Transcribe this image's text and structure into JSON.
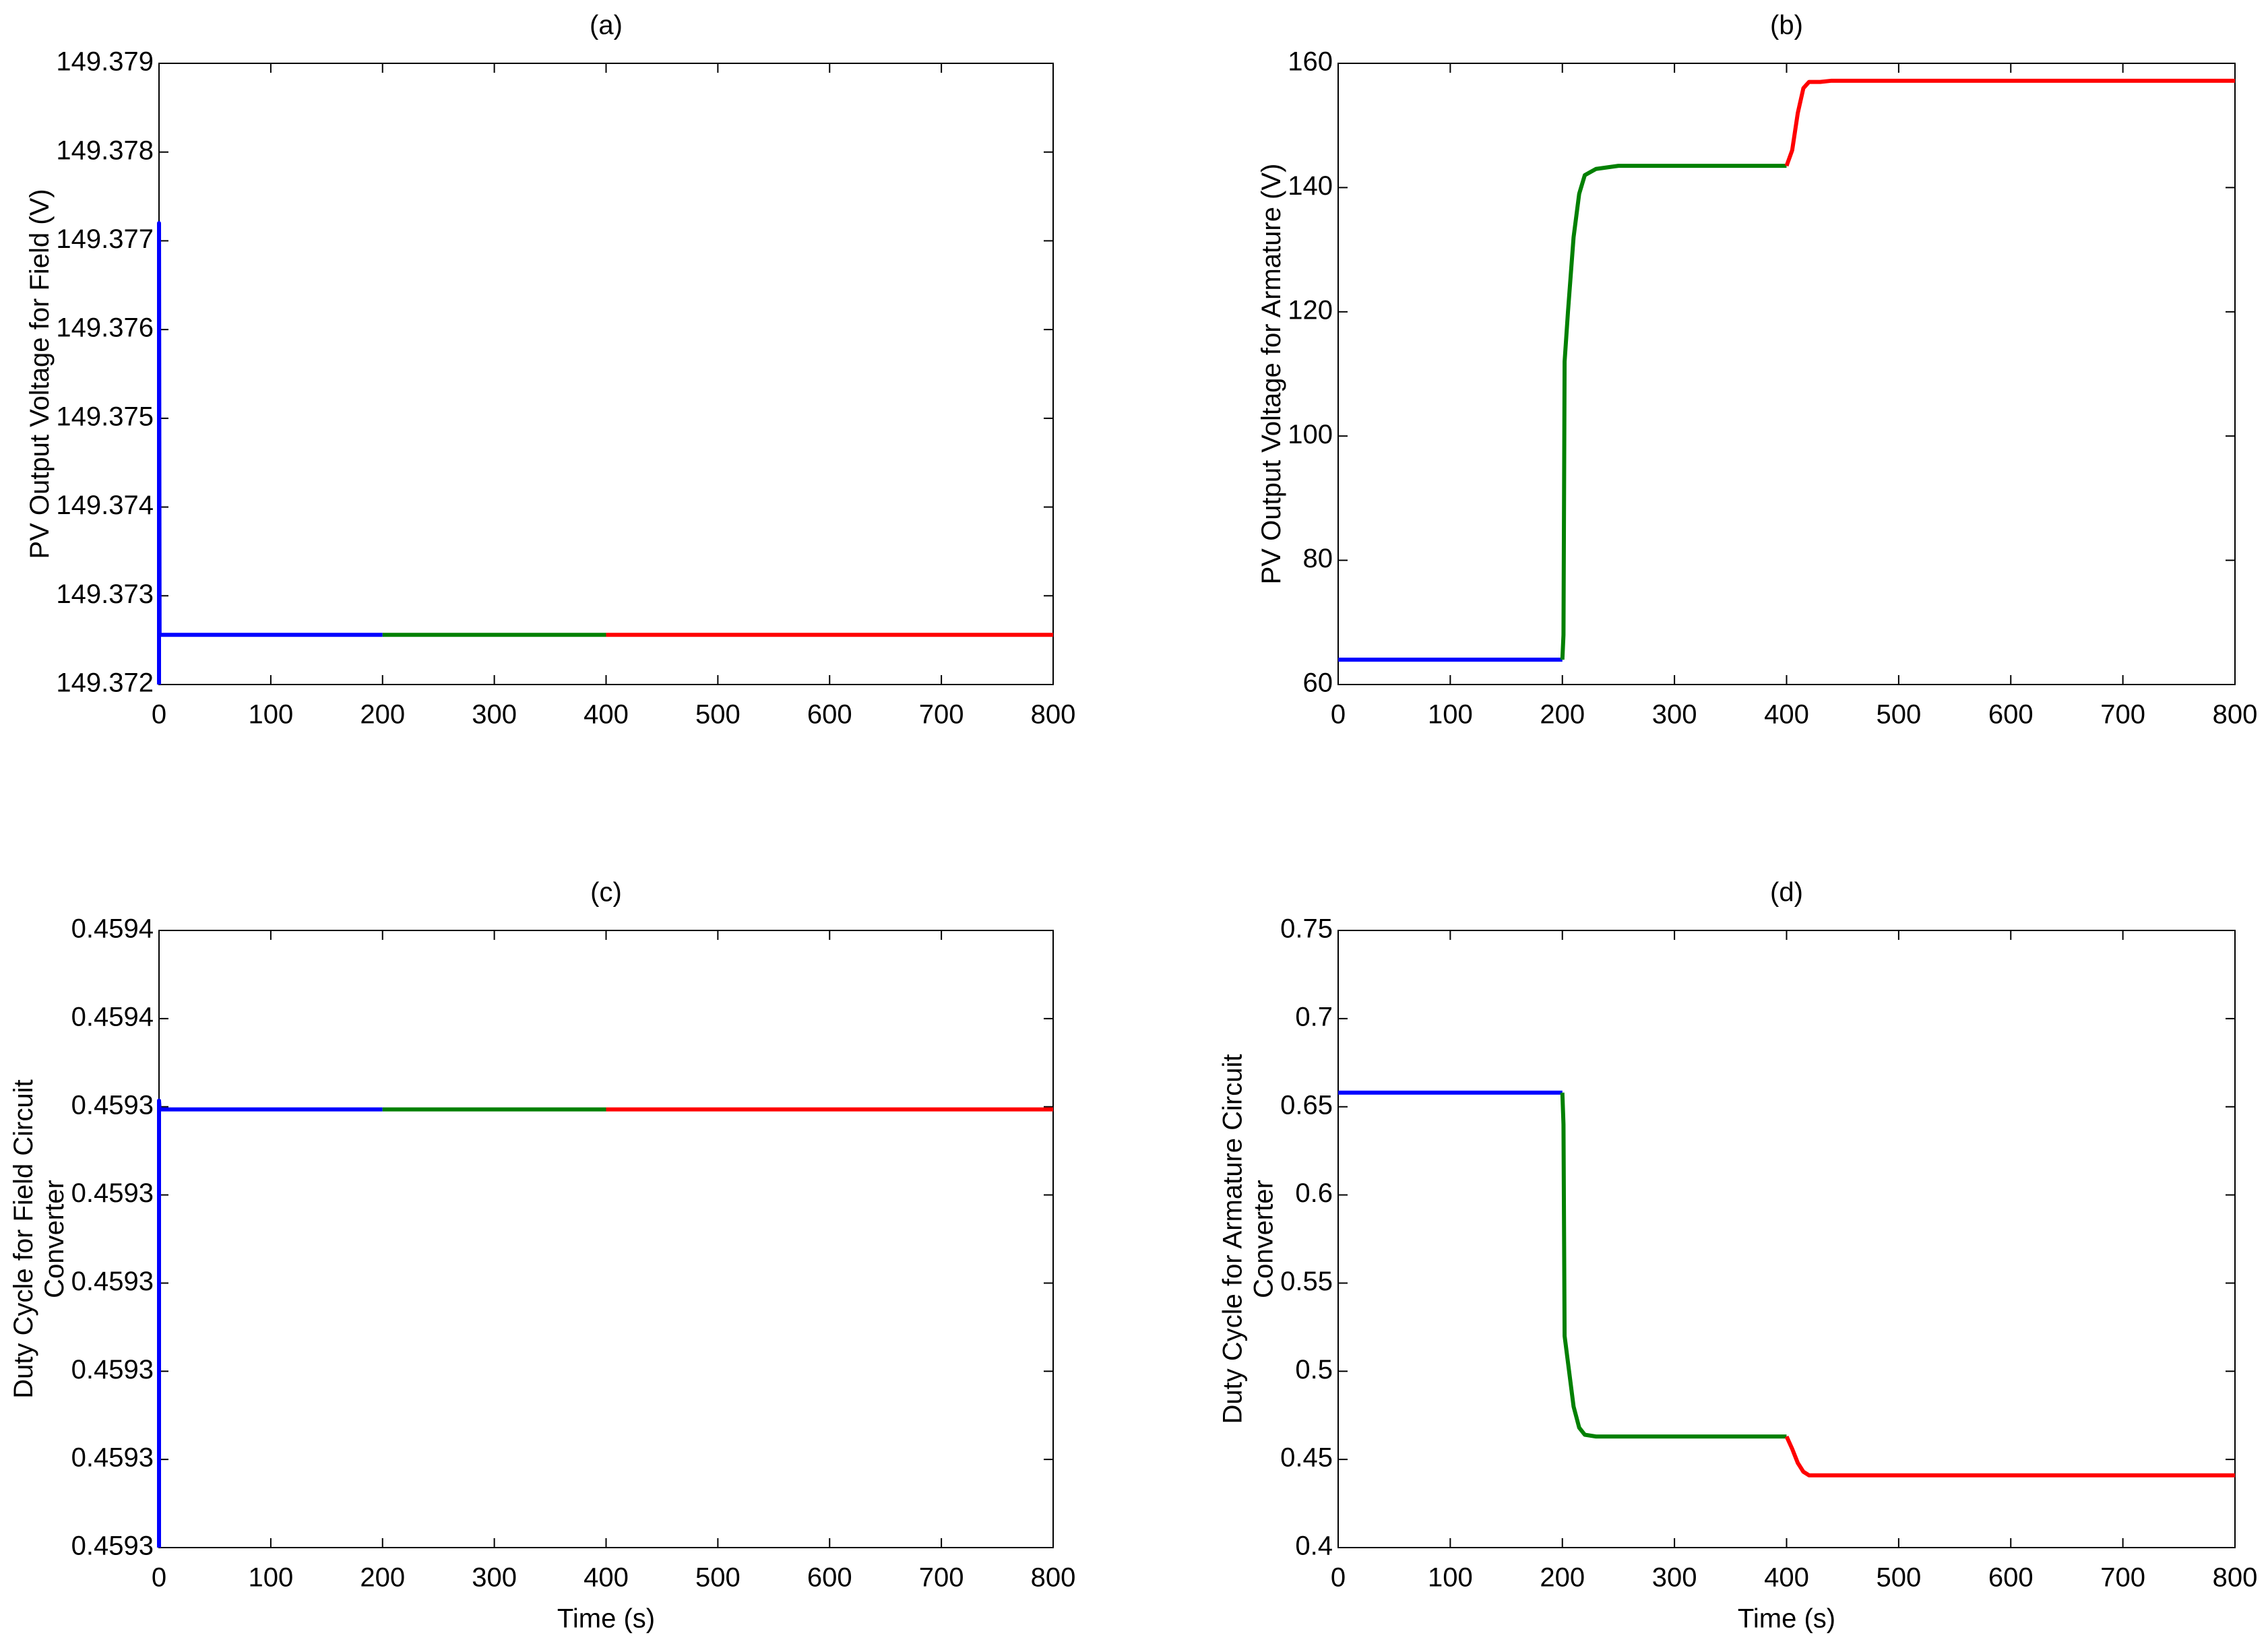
{
  "chart_data": [
    {
      "type": "line",
      "title": "(a)",
      "ylabel": [
        "PV Output Voltage for Field (V)"
      ],
      "xlim": [
        0,
        800
      ],
      "xticks": [
        0,
        100,
        200,
        300,
        400,
        500,
        600,
        700,
        800
      ],
      "ylim": [
        149.372,
        149.379
      ],
      "yticks": [
        149.372,
        149.373,
        149.374,
        149.375,
        149.376,
        149.377,
        149.378,
        149.379
      ],
      "series": [
        {
          "color": "#0000ff",
          "x": [
            0,
            0,
            0.5,
            200
          ],
          "values": [
            149.372,
            149.3772,
            149.37256,
            149.37256
          ]
        },
        {
          "color": "#008000",
          "x": [
            200,
            400
          ],
          "values": [
            149.37256,
            149.37256
          ]
        },
        {
          "color": "#ff0000",
          "x": [
            400,
            800
          ],
          "values": [
            149.37256,
            149.37256
          ]
        }
      ]
    },
    {
      "type": "line",
      "title": "(b)",
      "ylabel": [
        "PV Output Voltage for Armature (V)"
      ],
      "xlim": [
        0,
        800
      ],
      "xticks": [
        0,
        100,
        200,
        300,
        400,
        500,
        600,
        700,
        800
      ],
      "ylim": [
        60,
        160
      ],
      "yticks": [
        60,
        80,
        100,
        120,
        140,
        160
      ],
      "series": [
        {
          "color": "#0000ff",
          "x": [
            0,
            200
          ],
          "values": [
            64,
            64
          ]
        },
        {
          "color": "#008000",
          "x": [
            200,
            201,
            202,
            205,
            210,
            215,
            220,
            230,
            250,
            400
          ],
          "values": [
            64,
            68,
            112,
            120,
            132,
            139,
            142,
            143,
            143.5,
            143.5
          ]
        },
        {
          "color": "#ff0000",
          "x": [
            400,
            405,
            410,
            415,
            420,
            430,
            440,
            800
          ],
          "values": [
            143.5,
            146,
            152,
            156,
            157,
            157,
            157.2,
            157.2
          ]
        }
      ]
    },
    {
      "type": "line",
      "title": "(c)",
      "xlabel": "Time (s)",
      "ylabel": [
        "Duty Cycle for Field Circuit",
        "Converter"
      ],
      "xlim": [
        0,
        800
      ],
      "xticks": [
        0,
        100,
        200,
        300,
        400,
        500,
        600,
        700,
        800
      ],
      "ylim": [
        0.459292,
        0.459362
      ],
      "yticks": [
        {
          "value": 0.459292,
          "label": "0.4593"
        },
        {
          "value": 0.459302,
          "label": "0.4593"
        },
        {
          "value": 0.459312,
          "label": "0.4593"
        },
        {
          "value": 0.459322,
          "label": "0.4593"
        },
        {
          "value": 0.459332,
          "label": "0.4593"
        },
        {
          "value": 0.459342,
          "label": "0.4593"
        },
        {
          "value": 0.459352,
          "label": "0.4594"
        },
        {
          "value": 0.459362,
          "label": "0.4594"
        }
      ],
      "series": [
        {
          "color": "#0000ff",
          "x": [
            0,
            0,
            0.5,
            200
          ],
          "values": [
            0.459292,
            0.4593427,
            0.4593417,
            0.4593417
          ]
        },
        {
          "color": "#008000",
          "x": [
            200,
            400
          ],
          "values": [
            0.4593417,
            0.4593417
          ]
        },
        {
          "color": "#ff0000",
          "x": [
            400,
            800
          ],
          "values": [
            0.4593417,
            0.4593417
          ]
        }
      ]
    },
    {
      "type": "line",
      "title": "(d)",
      "xlabel": "Time (s)",
      "ylabel": [
        "Duty Cycle for Armature Circuit",
        "Converter"
      ],
      "xlim": [
        0,
        800
      ],
      "xticks": [
        0,
        100,
        200,
        300,
        400,
        500,
        600,
        700,
        800
      ],
      "ylim": [
        0.4,
        0.75
      ],
      "yticks": [
        0.4,
        0.45,
        0.5,
        0.55,
        0.6,
        0.65,
        0.7,
        0.75
      ],
      "series": [
        {
          "color": "#0000ff",
          "x": [
            0,
            200
          ],
          "values": [
            0.658,
            0.658
          ]
        },
        {
          "color": "#008000",
          "x": [
            200,
            201,
            202,
            205,
            210,
            215,
            220,
            230,
            400
          ],
          "values": [
            0.658,
            0.64,
            0.52,
            0.505,
            0.48,
            0.468,
            0.464,
            0.463,
            0.463
          ]
        },
        {
          "color": "#ff0000",
          "x": [
            400,
            405,
            410,
            415,
            420,
            800
          ],
          "values": [
            0.463,
            0.456,
            0.448,
            0.443,
            0.441,
            0.441
          ]
        }
      ]
    }
  ]
}
